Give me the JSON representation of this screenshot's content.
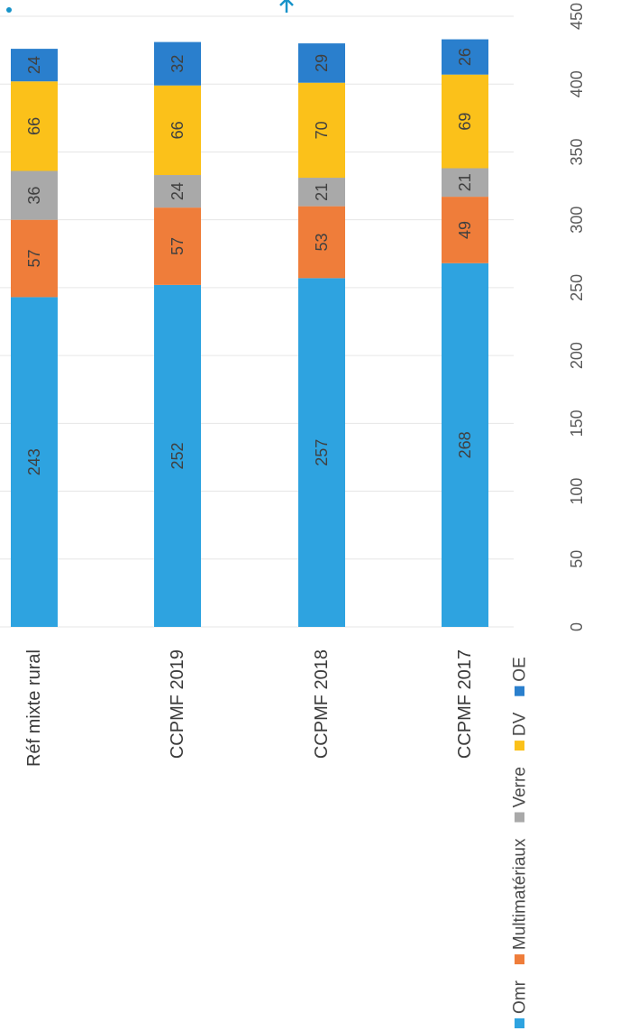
{
  "chart_data": {
    "type": "bar",
    "orientation": "horizontal",
    "stacked": true,
    "categories": [
      "Réf mixte rural",
      "CCPMF 2019",
      "CCPMF 2018",
      "CCPMF 2017"
    ],
    "series": [
      {
        "name": "Omr",
        "values": [
          243,
          252,
          257,
          268
        ],
        "color": "#2ea3e0"
      },
      {
        "name": "Multimatériaux",
        "values": [
          57,
          57,
          53,
          49
        ],
        "color": "#ef7d3a"
      },
      {
        "name": "Verre",
        "values": [
          36,
          24,
          21,
          21
        ],
        "color": "#a9a9a9"
      },
      {
        "name": "DV",
        "values": [
          66,
          66,
          70,
          69
        ],
        "color": "#fbc11a"
      },
      {
        "name": "OE",
        "values": [
          24,
          32,
          29,
          26
        ],
        "color": "#2a7fcd"
      }
    ],
    "xlim": [
      0,
      450
    ],
    "xticks": [
      "0",
      "50",
      "100",
      "150",
      "200",
      "250",
      "300",
      "350",
      "400",
      "450"
    ],
    "grid": true,
    "legend_position": "bottom",
    "data_labels": true
  },
  "decor": {
    "accent_color": "#1793c9",
    "arrow_glyph": "↑",
    "dot_glyph": "•"
  }
}
